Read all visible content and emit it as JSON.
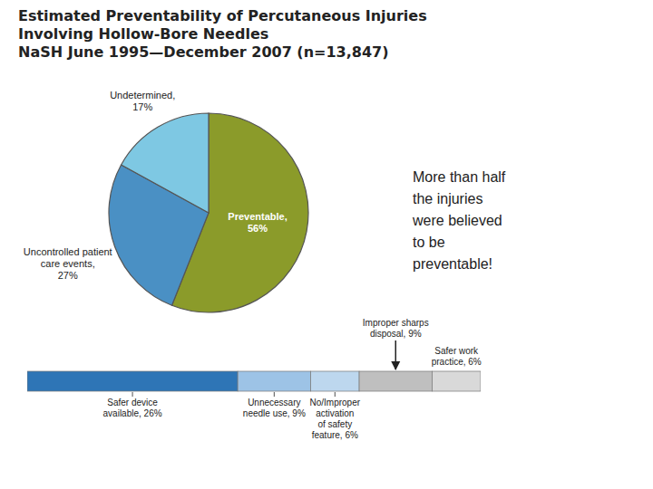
{
  "chart_data": [
    {
      "type": "pie",
      "title": "Estimated Preventability of Percutaneous Injuries\nInvolving Hollow-Bore Needles\nNaSH June 1995—December 2007 (n=13,847)",
      "categories": [
        "Preventable,\n56%",
        "Uncontrolled patient\ncare events,\n27%",
        "Undetermined,\n17%"
      ],
      "values": [
        56,
        27,
        17
      ],
      "colors": [
        "#8B9B2A",
        "#4A90C4",
        "#7EC8E3"
      ],
      "annotation": "More than half\nthe injuries\nwere believed\nto be\npreventable!"
    },
    {
      "type": "bar",
      "orientation": "horizontal",
      "stacked": true,
      "categories": [
        null
      ],
      "series": [
        {
          "name": "Safer device\navailable, 26%",
          "color": "#2E75B6",
          "values": [
            26
          ]
        },
        {
          "name": "Unnecessary\nneedle use, 9%",
          "color": "#9DC3E6",
          "values": [
            9
          ]
        },
        {
          "name": "No/Improper\nactivation\nof safety\nfeature, 6%",
          "color": "#BDD7EE",
          "values": [
            6
          ]
        },
        {
          "name": "Improper sharps\ndisposal, 9%",
          "color": "#BFBFBF",
          "values": [
            9
          ]
        },
        {
          "name": "Safer work\npractice, 6%",
          "color": "#D9D9D9",
          "values": [
            6
          ]
        }
      ],
      "xlim": [
        0,
        56
      ],
      "tick_labels": false
    }
  ]
}
